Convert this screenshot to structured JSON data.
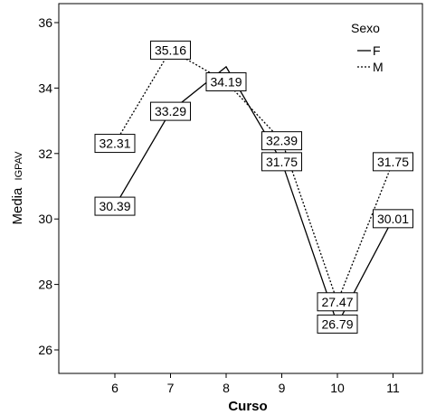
{
  "chart_data": {
    "type": "line",
    "xlabel": "Curso",
    "ylabel": "Media",
    "ylabel_sub": "IGPAV",
    "categories": [
      "6",
      "7",
      "8",
      "9",
      "10",
      "11"
    ],
    "ylim": [
      25.5,
      36.6
    ],
    "yticks": [
      "26",
      "28",
      "30",
      "32",
      "34",
      "36"
    ],
    "grid": false,
    "legend": {
      "title": "Sexo",
      "position": "top-right",
      "entries": [
        {
          "name": "F",
          "style": "solid"
        },
        {
          "name": "M",
          "style": "dotted"
        }
      ]
    },
    "series": [
      {
        "name": "F",
        "style": "solid",
        "values": [
          30.39,
          33.29,
          34.65,
          31.75,
          26.79,
          30.01
        ],
        "labels": [
          "30.39",
          "33.29",
          "",
          "31.75",
          "26.79",
          "30.01"
        ]
      },
      {
        "name": "M",
        "style": "dotted",
        "values": [
          32.31,
          35.16,
          34.19,
          32.39,
          27.47,
          31.75
        ],
        "labels": [
          "32.31",
          "35.16",
          "34.19",
          "32.39",
          "27.47",
          "31.75"
        ]
      }
    ],
    "colors": {
      "line": "#000000",
      "box_border": "#000000",
      "box_fill": "#ffffff"
    }
  }
}
